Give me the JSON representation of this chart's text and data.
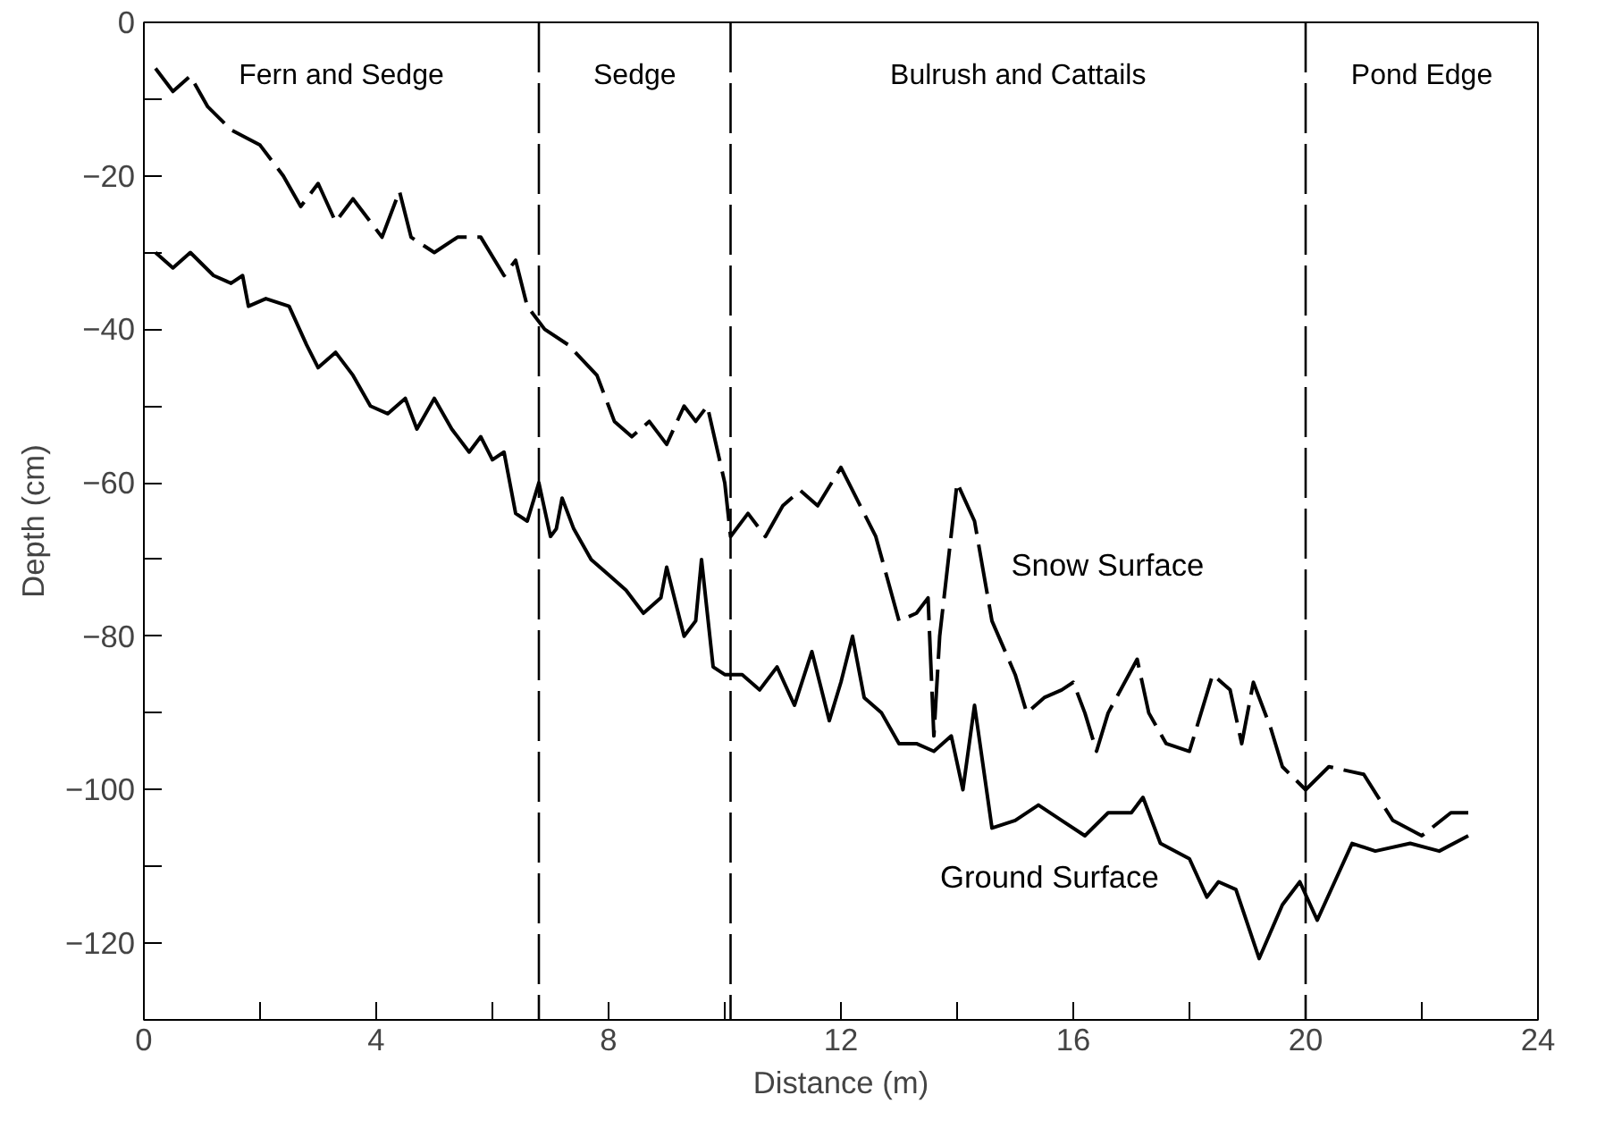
{
  "chart_data": {
    "type": "line",
    "xlabel": "Distance (m)",
    "ylabel": "Depth (cm)",
    "xlim": [
      0,
      24
    ],
    "ylim": [
      -130,
      0
    ],
    "xticks": [
      0,
      {
        "value": 2,
        "label": null
      },
      4,
      {
        "value": 6,
        "label": null
      },
      8,
      {
        "value": 10,
        "label": null
      },
      12,
      {
        "value": 14,
        "label": null
      },
      16,
      {
        "value": 18,
        "label": null
      },
      20,
      {
        "value": 22,
        "label": null
      },
      24
    ],
    "yticks": [
      0,
      {
        "value": -10,
        "label": null
      },
      -20,
      {
        "value": -30,
        "label": null
      },
      -40,
      {
        "value": -50,
        "label": null
      },
      -60,
      {
        "value": -70,
        "label": null
      },
      -80,
      {
        "value": -90,
        "label": null
      },
      -100,
      {
        "value": -110,
        "label": null
      },
      -120
    ],
    "grid": false,
    "marker": "none",
    "series": [
      {
        "name": "Snow Surface",
        "color": "#000000",
        "line_style": "dashed",
        "x": [
          0.2,
          0.5,
          0.8,
          1.1,
          1.5,
          2.0,
          2.4,
          2.7,
          3.0,
          3.3,
          3.6,
          3.9,
          4.1,
          4.4,
          4.6,
          5.0,
          5.4,
          5.8,
          6.2,
          6.4,
          6.6,
          6.9,
          7.3,
          7.8,
          8.1,
          8.4,
          8.7,
          9.0,
          9.3,
          9.5,
          9.7,
          10.0,
          10.1,
          10.4,
          10.7,
          11.0,
          11.3,
          11.6,
          12.0,
          12.2,
          12.6,
          13.0,
          13.3,
          13.5,
          13.6,
          13.7,
          14.0,
          14.3,
          14.6,
          15.0,
          15.2,
          15.5,
          15.8,
          16.0,
          16.2,
          16.4,
          16.6,
          17.1,
          17.3,
          17.6,
          18.0,
          18.4,
          18.7,
          18.9,
          19.1,
          19.4,
          19.6,
          20.0,
          20.4,
          21.0,
          21.5,
          22.0,
          22.5,
          22.8
        ],
        "values": [
          -6,
          -9,
          -7,
          -11,
          -14,
          -16,
          -20,
          -24,
          -21,
          -26,
          -23,
          -26,
          -28,
          -22,
          -28,
          -30,
          -28,
          -28,
          -33,
          -31,
          -37,
          -40,
          -42,
          -46,
          -52,
          -54,
          -52,
          -55,
          -50,
          -52,
          -50,
          -60,
          -67,
          -64,
          -67,
          -63,
          -61,
          -63,
          -58,
          -61,
          -67,
          -78,
          -77,
          -75,
          -93,
          -80,
          -60,
          -65,
          -78,
          -85,
          -90,
          -88,
          -87,
          -86,
          -90,
          -95,
          -90,
          -83,
          -90,
          -94,
          -95,
          -85,
          -87,
          -94,
          -86,
          -92,
          -97,
          -100,
          -97,
          -98,
          -104,
          -106,
          -103,
          -103
        ]
      },
      {
        "name": "Ground Surface",
        "color": "#000000",
        "line_style": "solid",
        "x": [
          0.2,
          0.5,
          0.8,
          1.2,
          1.5,
          1.7,
          1.8,
          2.1,
          2.5,
          2.8,
          3.0,
          3.3,
          3.6,
          3.9,
          4.2,
          4.5,
          4.7,
          5.0,
          5.3,
          5.6,
          5.8,
          6.0,
          6.2,
          6.4,
          6.6,
          6.8,
          7.0,
          7.1,
          7.2,
          7.4,
          7.7,
          8.0,
          8.3,
          8.6,
          8.9,
          9.0,
          9.3,
          9.5,
          9.6,
          9.8,
          10.0,
          10.3,
          10.6,
          10.9,
          11.2,
          11.5,
          11.8,
          12.0,
          12.2,
          12.4,
          12.7,
          13.0,
          13.3,
          13.6,
          13.9,
          14.1,
          14.3,
          14.6,
          15.0,
          15.4,
          15.8,
          16.2,
          16.6,
          17.0,
          17.2,
          17.5,
          18.0,
          18.3,
          18.5,
          18.8,
          19.2,
          19.6,
          19.9,
          20.2,
          20.5,
          20.8,
          21.2,
          21.8,
          22.3,
          22.8
        ],
        "values": [
          -30,
          -32,
          -30,
          -33,
          -34,
          -33,
          -37,
          -36,
          -37,
          -42,
          -45,
          -43,
          -46,
          -50,
          -51,
          -49,
          -53,
          -49,
          -53,
          -56,
          -54,
          -57,
          -56,
          -64,
          -65,
          -60,
          -67,
          -66,
          -62,
          -66,
          -70,
          -72,
          -74,
          -77,
          -75,
          -71,
          -80,
          -78,
          -70,
          -84,
          -85,
          -85,
          -87,
          -84,
          -89,
          -82,
          -91,
          -86,
          -80,
          -88,
          -90,
          -94,
          -94,
          -95,
          -93,
          -100,
          -89,
          -105,
          -104,
          -102,
          -104,
          -106,
          -103,
          -103,
          -101,
          -107,
          -109,
          -114,
          -112,
          -113,
          -122,
          -115,
          -112,
          -117,
          -112,
          -107,
          -108,
          -107,
          -108,
          -106
        ]
      }
    ],
    "ref_lines": [
      {
        "axis": "x",
        "value": 6.8,
        "line_style": "dashed"
      },
      {
        "axis": "x",
        "value": 10.1,
        "line_style": "dashed"
      },
      {
        "axis": "x",
        "value": 20,
        "line_style": "dashed"
      }
    ],
    "annotations": [
      "Fern and Sedge",
      "Sedge",
      "Bulrush and Cattails",
      "Pond Edge"
    ]
  }
}
